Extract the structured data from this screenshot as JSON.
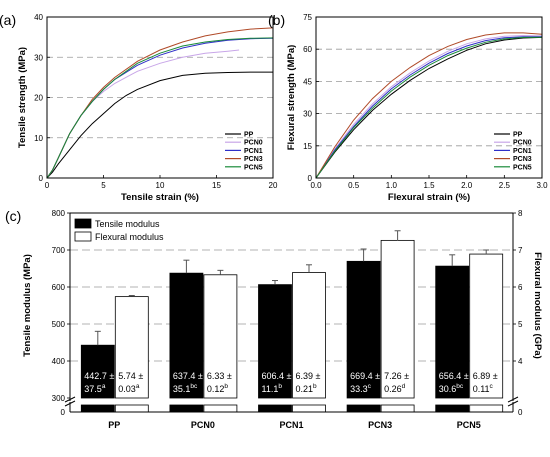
{
  "chart_data": [
    {
      "panel": "(a)",
      "type": "line",
      "xlabel": "Tensile strain (%)",
      "ylabel": "Tensile strength (MPa)",
      "xlim": [
        0,
        20
      ],
      "ylim": [
        0,
        40
      ],
      "xticks": [
        "0",
        "5",
        "10",
        "15",
        "20"
      ],
      "yticks": [
        "0",
        "10",
        "20",
        "30",
        "40"
      ],
      "dashed_gridlines_y": [
        10,
        20,
        30
      ],
      "legend_position": "lower-right",
      "series": [
        {
          "name": "PP",
          "color": "#000000",
          "x": [
            0,
            0.5,
            1,
            2,
            3,
            4,
            5,
            6,
            7,
            8,
            10,
            12,
            14,
            16,
            18,
            20
          ],
          "y": [
            0,
            1.5,
            3.5,
            7,
            10.5,
            13.5,
            16,
            18.5,
            20.5,
            22,
            24.2,
            25.5,
            26,
            26.2,
            26.3,
            26.3
          ]
        },
        {
          "name": "PCN0",
          "color": "#c8a6e8",
          "x": [
            0,
            0.5,
            1,
            2,
            3,
            4,
            5,
            6,
            8,
            10,
            12,
            14,
            16,
            17
          ],
          "y": [
            0,
            2,
            5,
            11,
            15.5,
            19,
            21.5,
            23.5,
            26.5,
            28.5,
            30,
            31,
            31.5,
            31.8
          ]
        },
        {
          "name": "PCN1",
          "color": "#3030c8",
          "x": [
            0,
            0.5,
            1,
            2,
            3,
            4,
            5,
            6,
            8,
            10,
            12,
            14,
            16,
            18,
            20
          ],
          "y": [
            0,
            2,
            5,
            11,
            15.5,
            19,
            22,
            24.5,
            28,
            30.5,
            32.3,
            33.5,
            34.2,
            34.6,
            34.7
          ]
        },
        {
          "name": "PCN3",
          "color": "#b04a28",
          "x": [
            0,
            0.5,
            1,
            2,
            3,
            4,
            5,
            6,
            8,
            10,
            12,
            14,
            16,
            18,
            20
          ],
          "y": [
            0,
            2,
            5,
            11,
            15.5,
            19.5,
            22.5,
            25,
            29,
            31.8,
            33.8,
            35.3,
            36.3,
            37,
            37.3
          ]
        },
        {
          "name": "PCN5",
          "color": "#1a8a3a",
          "x": [
            0,
            0.5,
            1,
            2,
            3,
            4,
            5,
            6,
            8,
            10,
            12,
            14,
            16,
            18,
            20
          ],
          "y": [
            0,
            2,
            5,
            11,
            15.5,
            19,
            22,
            24.5,
            28.5,
            31,
            32.8,
            33.8,
            34.4,
            34.7,
            34.8
          ]
        }
      ]
    },
    {
      "panel": "(b)",
      "type": "line",
      "xlabel": "Flexural strain (%)",
      "ylabel": "Flexural strength (MPa)",
      "xlim": [
        0,
        3.0
      ],
      "ylim": [
        0,
        75
      ],
      "xticks": [
        "0.0",
        "0.5",
        "1.0",
        "1.5",
        "2.0",
        "2.5",
        "3.0"
      ],
      "yticks": [
        "0",
        "15",
        "30",
        "45",
        "60",
        "75"
      ],
      "dashed_gridlines_y": [
        15,
        30,
        45,
        60
      ],
      "legend_position": "lower-right",
      "series": [
        {
          "name": "PP",
          "color": "#000000",
          "x": [
            0,
            0.25,
            0.5,
            0.75,
            1.0,
            1.25,
            1.5,
            1.75,
            2.0,
            2.25,
            2.5,
            2.75,
            3.0
          ],
          "y": [
            0,
            12,
            22.5,
            31.5,
            39,
            45.5,
            51,
            55.5,
            59.5,
            62.5,
            64.3,
            65.2,
            65.5
          ]
        },
        {
          "name": "PCN0",
          "color": "#c8a6e8",
          "x": [
            0,
            0.25,
            0.5,
            0.75,
            1.0,
            1.25,
            1.5,
            1.75,
            2.0,
            2.25,
            2.5,
            2.75,
            3.0
          ],
          "y": [
            0,
            13.5,
            25,
            34.5,
            42.5,
            49,
            54.5,
            59,
            62.5,
            64.8,
            66,
            66.4,
            66.2
          ]
        },
        {
          "name": "PCN1",
          "color": "#3030c8",
          "x": [
            0,
            0.25,
            0.5,
            0.75,
            1.0,
            1.25,
            1.5,
            1.75,
            2.0,
            2.25,
            2.5,
            2.75,
            3.0
          ],
          "y": [
            0,
            13,
            24,
            33.5,
            41.5,
            48,
            53.5,
            58,
            61.5,
            64,
            65.3,
            65.8,
            65.8
          ]
        },
        {
          "name": "PCN3",
          "color": "#b04a28",
          "x": [
            0,
            0.25,
            0.5,
            0.75,
            1.0,
            1.25,
            1.5,
            1.75,
            2.0,
            2.25,
            2.5,
            2.75,
            3.0
          ],
          "y": [
            0,
            14.5,
            27,
            37,
            45,
            51.5,
            57,
            61.3,
            64.5,
            66.6,
            67.6,
            67.6,
            67.0
          ]
        },
        {
          "name": "PCN5",
          "color": "#1a8a3a",
          "x": [
            0,
            0.25,
            0.5,
            0.75,
            1.0,
            1.25,
            1.5,
            1.75,
            2.0,
            2.25,
            2.5,
            2.75,
            3.0
          ],
          "y": [
            0,
            12.5,
            23.5,
            32.5,
            40.5,
            47,
            52.5,
            57,
            60.5,
            63.2,
            64.8,
            65.5,
            65.6
          ]
        }
      ]
    },
    {
      "panel": "(c)",
      "type": "bar",
      "categories": [
        "PP",
        "PCN0",
        "PCN1",
        "PCN3",
        "PCN5"
      ],
      "ylabel": "Tensile modulus (MPa)",
      "y2label": "Flexural modulus (GPa)",
      "ylim": [
        300,
        800
      ],
      "y2lim": [
        3,
        8
      ],
      "yticks": [
        "0",
        "300",
        "400",
        "500",
        "600",
        "700",
        "800"
      ],
      "y2ticks": [
        "0",
        "4",
        "5",
        "6",
        "7",
        "8"
      ],
      "axis_break": true,
      "dashed_gridlines_y": [
        400,
        500,
        600,
        700
      ],
      "legend_position": "top-left",
      "series": [
        {
          "name": "Tensile modulus",
          "axis": "left",
          "fill": "#000000",
          "values": [
            442.7,
            637.4,
            606.4,
            669.4,
            656.4
          ],
          "errors": [
            37.5,
            35.1,
            11.1,
            33.3,
            30.6
          ],
          "labels": [
            {
              "l1": "442.7 ±",
              "l2": "37.5",
              "sup": "a"
            },
            {
              "l1": "637.4 ±",
              "l2": "35.1",
              "sup": "bc"
            },
            {
              "l1": "606.4 ±",
              "l2": "11.1",
              "sup": "b"
            },
            {
              "l1": "669.4 ±",
              "l2": "33.3",
              "sup": "c"
            },
            {
              "l1": "656.4 ±",
              "l2": "30.6",
              "sup": "bc"
            }
          ]
        },
        {
          "name": "Flexural modulus",
          "axis": "right",
          "fill": "#ffffff",
          "values": [
            5.74,
            6.33,
            6.39,
            7.26,
            6.89
          ],
          "errors": [
            0.03,
            0.12,
            0.21,
            0.26,
            0.11
          ],
          "labels": [
            {
              "l1": "5.74 ±",
              "l2": "0.03",
              "sup": "a"
            },
            {
              "l1": "6.33 ±",
              "l2": "0.12",
              "sup": "b"
            },
            {
              "l1": "6.39 ±",
              "l2": "0.21",
              "sup": "b"
            },
            {
              "l1": "7.26 ±",
              "l2": "0.26",
              "sup": "d"
            },
            {
              "l1": "6.89 ±",
              "l2": "0.11",
              "sup": "c"
            }
          ]
        }
      ]
    }
  ]
}
